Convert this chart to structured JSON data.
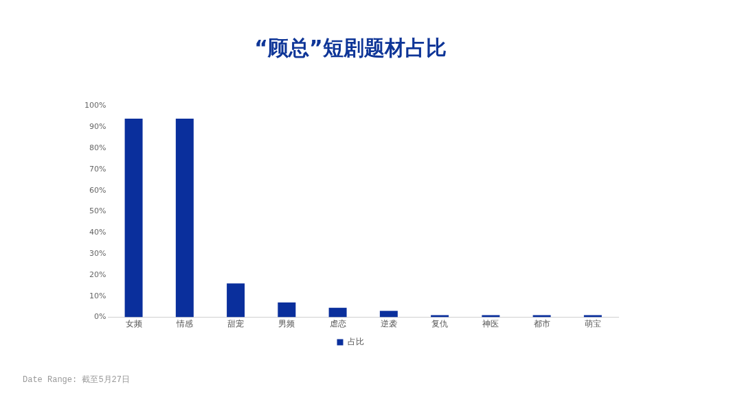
{
  "chart_data": {
    "type": "bar",
    "title": "“顾总”短剧题材占比",
    "categories": [
      "女频",
      "情感",
      "甜宠",
      "男频",
      "虐恋",
      "逆袭",
      "复仇",
      "神医",
      "都市",
      "萌宝"
    ],
    "series": [
      {
        "name": "占比",
        "color": "#0a2f9c",
        "values": [
          94,
          94,
          16,
          7,
          4.5,
          3,
          1,
          1,
          1,
          1
        ]
      }
    ],
    "ylim": [
      0,
      100
    ],
    "yticks": [
      {
        "value": 0,
        "label": "0%"
      },
      {
        "value": 10,
        "label": "10%"
      },
      {
        "value": 20,
        "label": "20%"
      },
      {
        "value": 30,
        "label": "30%"
      },
      {
        "value": 40,
        "label": "40%"
      },
      {
        "value": 50,
        "label": "50%"
      },
      {
        "value": 60,
        "label": "60%"
      },
      {
        "value": 70,
        "label": "70%"
      },
      {
        "value": 80,
        "label": "80%"
      },
      {
        "value": 90,
        "label": "90%"
      },
      {
        "value": 100,
        "label": "100%"
      }
    ],
    "grid": false,
    "legend": "bottom",
    "annotations": [
      "Date Range: 截至5月27日"
    ]
  }
}
